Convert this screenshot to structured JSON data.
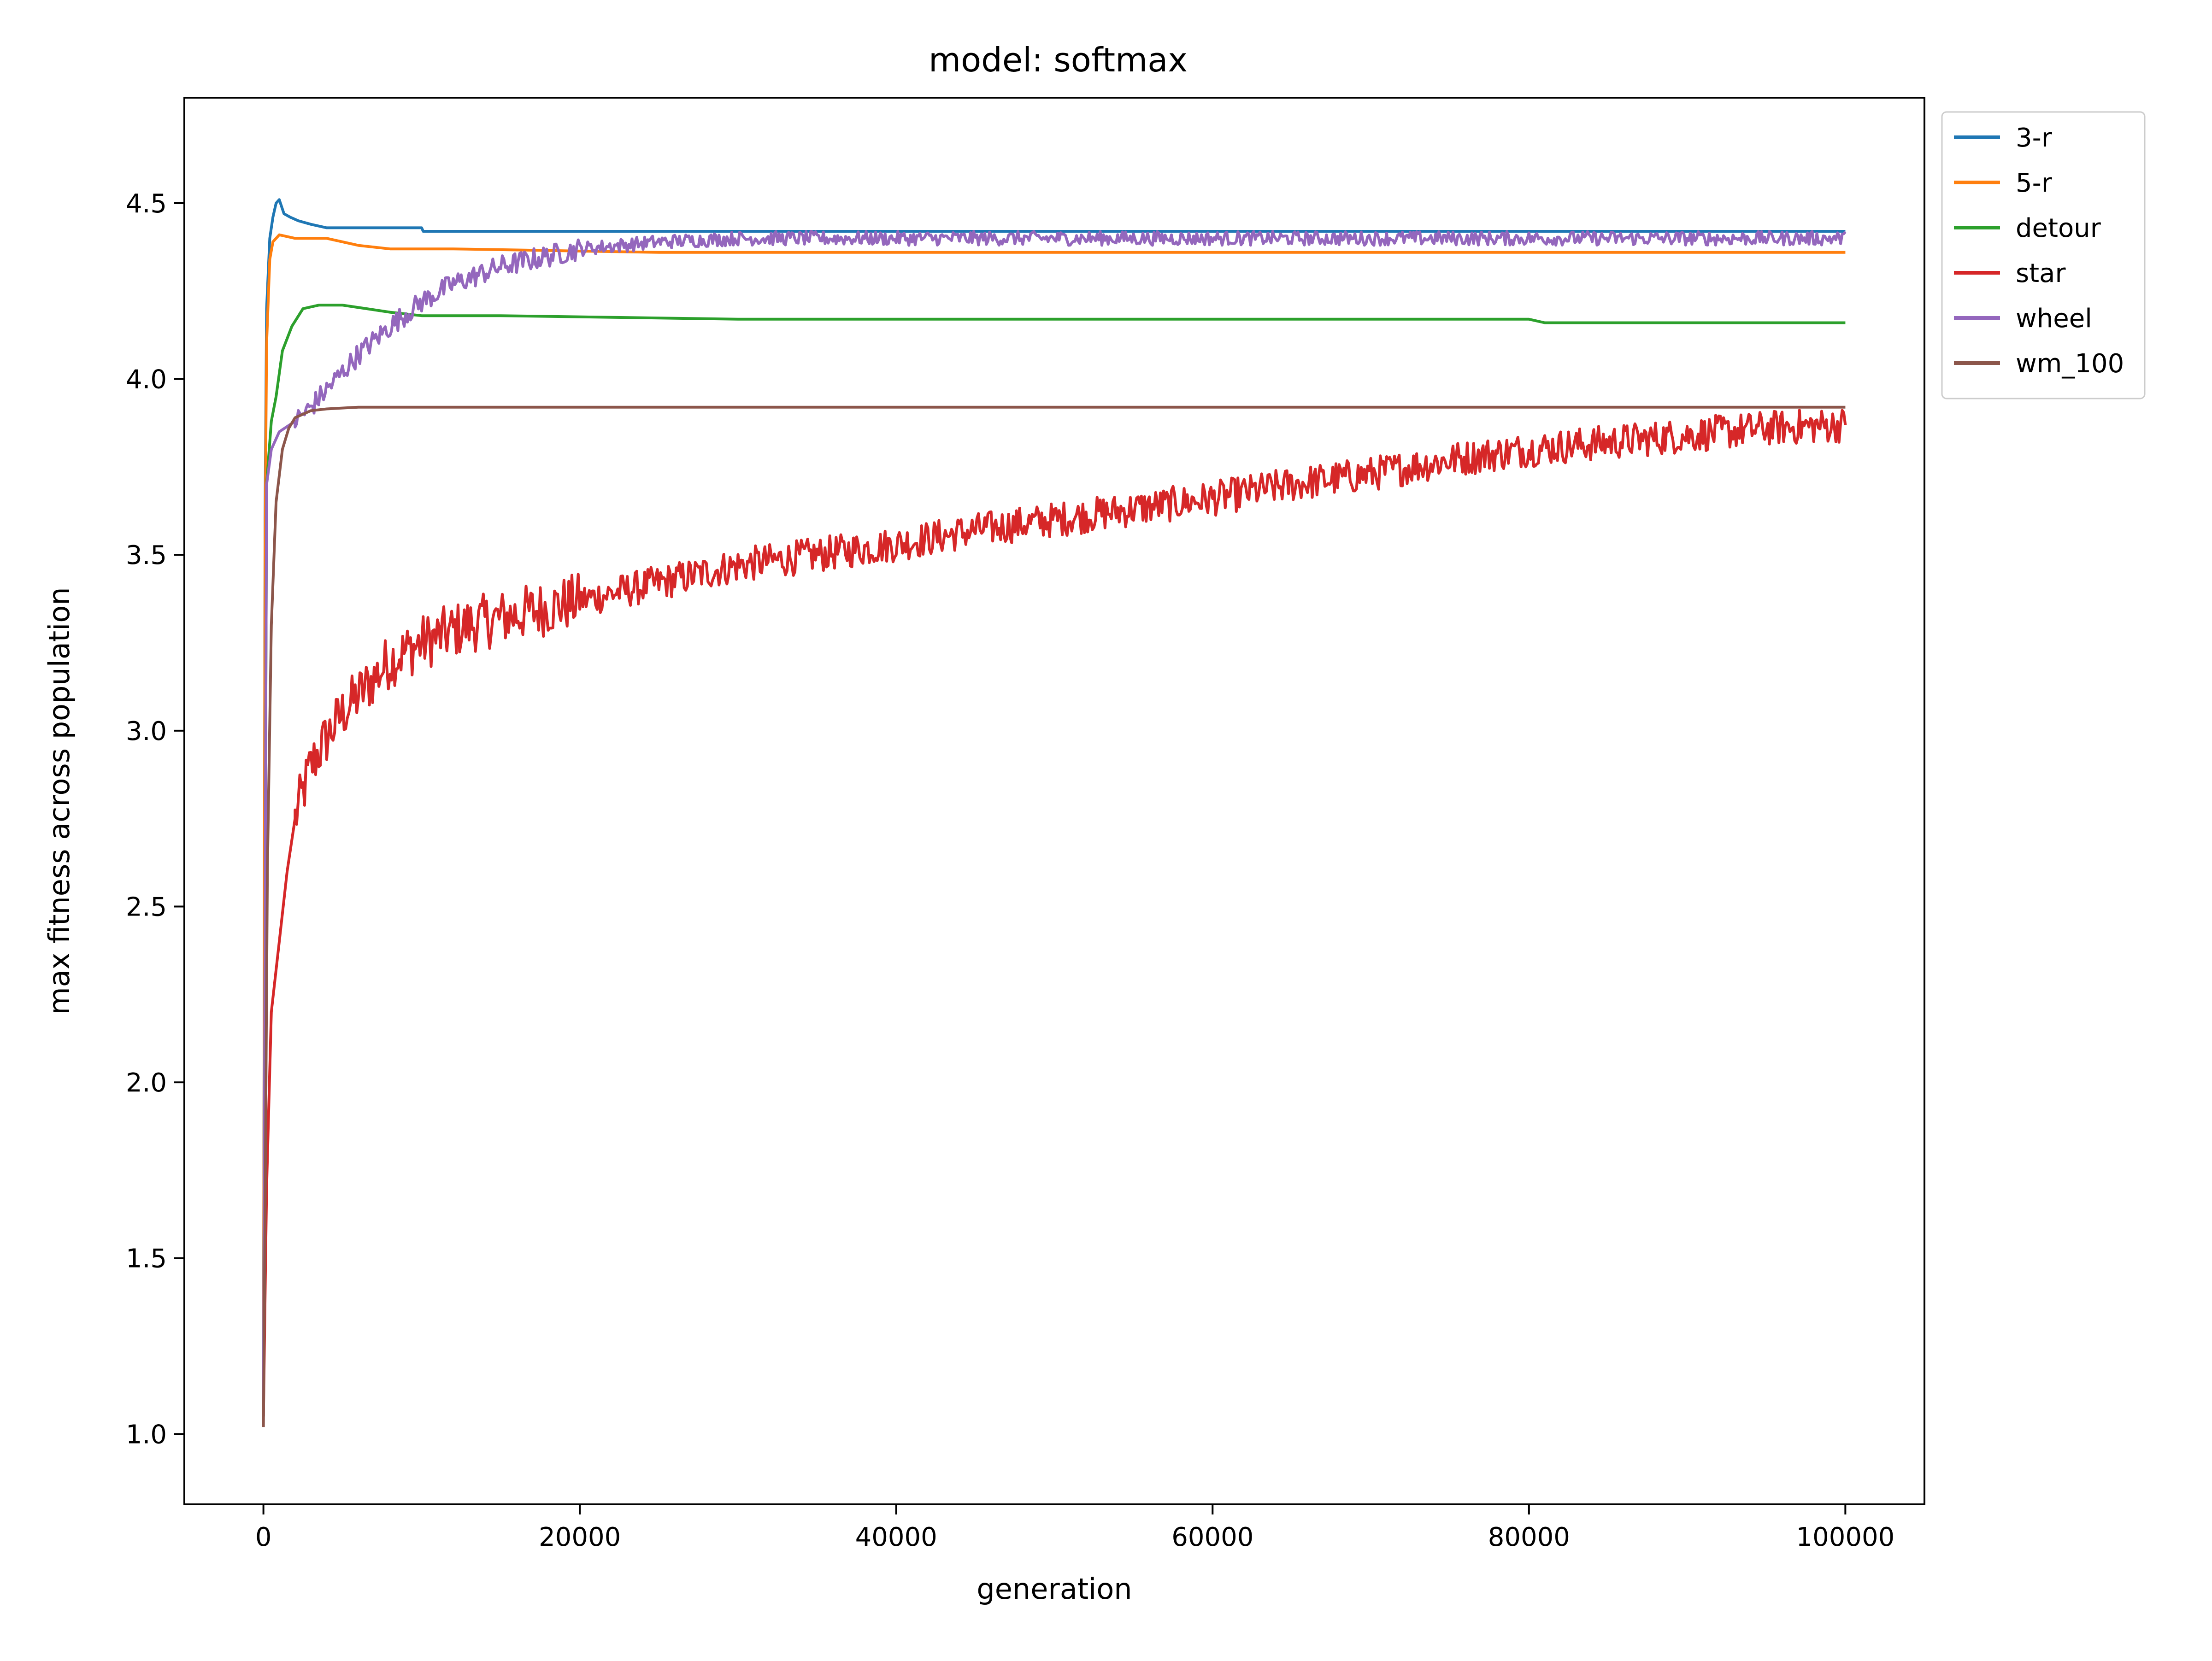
{
  "chart_data": {
    "type": "line",
    "title": "model: softmax",
    "xlabel": "generation",
    "ylabel": "max fitness across population",
    "xlim": [
      -5000,
      105000
    ],
    "ylim": [
      0.8,
      4.8
    ],
    "xticks": [
      0,
      20000,
      40000,
      60000,
      80000,
      100000
    ],
    "xtick_labels": [
      "0",
      "20000",
      "40000",
      "60000",
      "80000",
      "100000"
    ],
    "yticks": [
      1.0,
      1.5,
      2.0,
      2.5,
      3.0,
      3.5,
      4.0,
      4.5
    ],
    "ytick_labels": [
      "1.0",
      "1.5",
      "2.0",
      "2.5",
      "3.0",
      "3.5",
      "4.0",
      "4.5"
    ],
    "grid": false,
    "legend_position": "outside-top-right",
    "series": [
      {
        "name": "3-r",
        "color": "#1f77b4",
        "noise": 0,
        "x": [
          0,
          100,
          200,
          400,
          600,
          800,
          1000,
          1300,
          1700,
          2200,
          3000,
          4000,
          10000,
          10100,
          100000
        ],
        "y": [
          1.05,
          3.6,
          4.2,
          4.4,
          4.46,
          4.5,
          4.51,
          4.47,
          4.46,
          4.45,
          4.44,
          4.43,
          4.43,
          4.42,
          4.42
        ]
      },
      {
        "name": "5-r",
        "color": "#ff7f0e",
        "noise": 0,
        "x": [
          0,
          100,
          200,
          400,
          600,
          1000,
          2000,
          3000,
          4000,
          5000,
          6000,
          8000,
          12000,
          25000,
          100000
        ],
        "y": [
          1.05,
          3.5,
          4.1,
          4.34,
          4.39,
          4.41,
          4.4,
          4.4,
          4.4,
          4.39,
          4.38,
          4.37,
          4.37,
          4.36,
          4.36
        ]
      },
      {
        "name": "detour",
        "color": "#2ca02c",
        "noise": 0,
        "x": [
          0,
          200,
          500,
          800,
          1200,
          1800,
          2500,
          3500,
          5000,
          6500,
          8000,
          10000,
          15000,
          30000,
          80000,
          81000,
          100000
        ],
        "y": [
          1.05,
          3.7,
          3.88,
          3.95,
          4.08,
          4.15,
          4.2,
          4.21,
          4.21,
          4.2,
          4.19,
          4.18,
          4.18,
          4.17,
          4.17,
          4.16,
          4.16
        ]
      },
      {
        "name": "star",
        "color": "#d62728",
        "noise": 0.05,
        "x": [
          0,
          200,
          500,
          1000,
          1500,
          2000,
          3000,
          4000,
          5000,
          6000,
          8000,
          10000,
          13000,
          16000,
          20000,
          25000,
          30000,
          35000,
          40000,
          45000,
          50000,
          55000,
          60000,
          65000,
          70000,
          75000,
          80000,
          85000,
          90000,
          95000,
          100000
        ],
        "y": [
          1.05,
          1.7,
          2.2,
          2.4,
          2.6,
          2.75,
          2.9,
          2.98,
          3.05,
          3.1,
          3.2,
          3.25,
          3.3,
          3.33,
          3.37,
          3.42,
          3.47,
          3.5,
          3.53,
          3.57,
          3.6,
          3.63,
          3.66,
          3.7,
          3.73,
          3.77,
          3.8,
          3.82,
          3.84,
          3.86,
          3.87
        ]
      },
      {
        "name": "wheel",
        "color": "#9467bd",
        "noise": 0.02,
        "x": [
          0,
          200,
          500,
          1000,
          2000,
          3000,
          4000,
          5000,
          6000,
          8000,
          10000,
          12000,
          15000,
          18000,
          20000,
          25000,
          30000,
          35000,
          40000,
          50000,
          100000
        ],
        "y": [
          1.05,
          3.7,
          3.8,
          3.85,
          3.88,
          3.92,
          3.97,
          4.02,
          4.07,
          4.15,
          4.22,
          4.27,
          4.32,
          4.35,
          4.37,
          4.39,
          4.4,
          4.4,
          4.4,
          4.4,
          4.4
        ]
      },
      {
        "name": "wm_100",
        "color": "#8c564b",
        "noise": 0,
        "x": [
          0,
          100,
          250,
          500,
          800,
          1200,
          1600,
          2000,
          3000,
          4000,
          6000,
          100000
        ],
        "y": [
          1.02,
          1.6,
          2.6,
          3.3,
          3.65,
          3.8,
          3.86,
          3.89,
          3.91,
          3.915,
          3.92,
          3.92
        ]
      }
    ]
  }
}
